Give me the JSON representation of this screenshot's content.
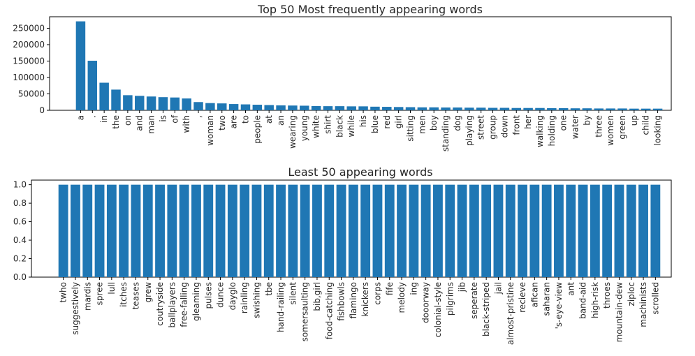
{
  "colors": {
    "bar": "#1f77b4"
  },
  "chart_data": [
    {
      "type": "bar",
      "title": "Top 50 Most frequently appearing words",
      "xlabel": "",
      "ylabel": "",
      "ylim": [
        0,
        285000
      ],
      "yticks": [
        0,
        50000,
        100000,
        150000,
        200000,
        250000
      ],
      "grid": false,
      "categories": [
        "a",
        ".",
        "in",
        "the",
        "on",
        "and",
        "man",
        "is",
        "of",
        "with",
        ",",
        "woman",
        "two",
        "are",
        "to",
        "people",
        "at",
        "an",
        "wearing",
        "young",
        "white",
        "shirt",
        "black",
        "while",
        "his",
        "blue",
        "red",
        "girl",
        "sitting",
        "men",
        "boy",
        "standing",
        "dog",
        "playing",
        "street",
        "group",
        "down",
        "front",
        "her",
        "walking",
        "holding",
        "one",
        "water",
        "by",
        "three",
        "women",
        "green",
        "up",
        "child",
        "looking"
      ],
      "values": [
        271000,
        151000,
        84000,
        63000,
        46000,
        44000,
        42000,
        40000,
        39000,
        36000,
        25000,
        22000,
        21000,
        19000,
        18000,
        17000,
        16000,
        15000,
        14500,
        14000,
        13000,
        12500,
        12500,
        12000,
        12000,
        11000,
        10500,
        10000,
        9500,
        9000,
        9000,
        8500,
        8500,
        8000,
        8000,
        7500,
        7500,
        7000,
        7000,
        7000,
        6500,
        6500,
        6000,
        6000,
        5500,
        5500,
        5500,
        5000,
        5000,
        5000
      ]
    },
    {
      "type": "bar",
      "title": "Least 50 appearing words",
      "xlabel": "",
      "ylabel": "",
      "ylim": [
        0,
        1.05
      ],
      "yticks": [
        0.0,
        0.2,
        0.4,
        0.6,
        0.8,
        1.0
      ],
      "grid": false,
      "categories": [
        "twho",
        "suggestively",
        "mardis",
        "spree",
        "lull",
        "itches",
        "teases",
        "grew",
        "coutryside",
        "ballplayers",
        "free-falling",
        "gleaming",
        "pulses",
        "dunce",
        "dayglo",
        "rainling",
        "swishing",
        "tbe",
        "hand-railing",
        "silent",
        "somersaulting",
        "bib,girl",
        "food-catching",
        "fishbowls",
        "flamingo",
        "knickers",
        "corps",
        "fife",
        "melody",
        "ing",
        "dooorway",
        "colonial-style",
        "pilgrims",
        "jib",
        "seperate",
        "black-striped",
        "jail",
        "almost-pristine",
        "recieve",
        "afican",
        "saharan",
        "'s-eye-view",
        "ant",
        "band-aid",
        "high-risk",
        "throes",
        "mountain-dew",
        "ziploc",
        "machinists",
        "scrolled"
      ],
      "values": [
        1,
        1,
        1,
        1,
        1,
        1,
        1,
        1,
        1,
        1,
        1,
        1,
        1,
        1,
        1,
        1,
        1,
        1,
        1,
        1,
        1,
        1,
        1,
        1,
        1,
        1,
        1,
        1,
        1,
        1,
        1,
        1,
        1,
        1,
        1,
        1,
        1,
        1,
        1,
        1,
        1,
        1,
        1,
        1,
        1,
        1,
        1,
        1,
        1,
        1
      ]
    }
  ]
}
